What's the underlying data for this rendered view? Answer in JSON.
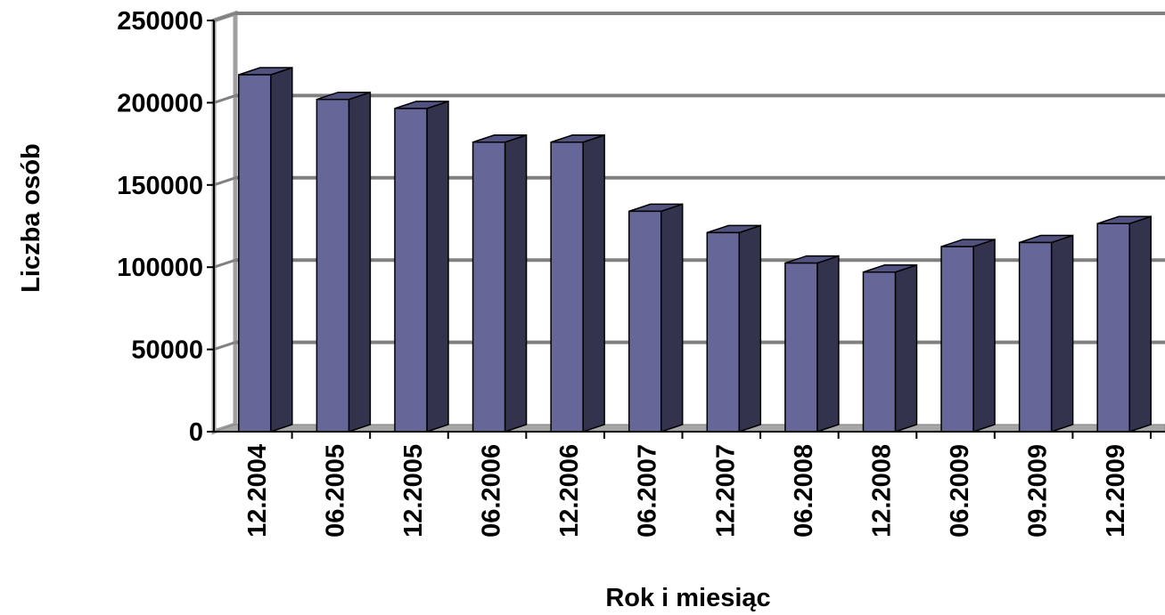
{
  "chart_data": {
    "type": "bar",
    "title": "",
    "xlabel": "Rok i miesiąc",
    "ylabel": "Liczba osób",
    "categories": [
      "12.2004",
      "06.2005",
      "12.2005",
      "06.2006",
      "12.2006",
      "06.2007",
      "12.2007",
      "06.2008",
      "12.2008",
      "06.2009",
      "09.2009",
      "12.2009"
    ],
    "values": [
      217000,
      202000,
      196500,
      176000,
      176000,
      134000,
      121000,
      102500,
      97000,
      112500,
      115000,
      126500
    ],
    "yticks": [
      "0",
      "50000",
      "100000",
      "150000",
      "200000",
      "250000"
    ],
    "ylim": [
      0,
      250000
    ],
    "grid": true,
    "legend": "none",
    "style": "3d-bar",
    "colors": {
      "bar_front": "#666699",
      "bar_side": "#33334d",
      "bar_top": "#525280",
      "grid": "#808080",
      "floor": "#a6a6a6"
    }
  }
}
